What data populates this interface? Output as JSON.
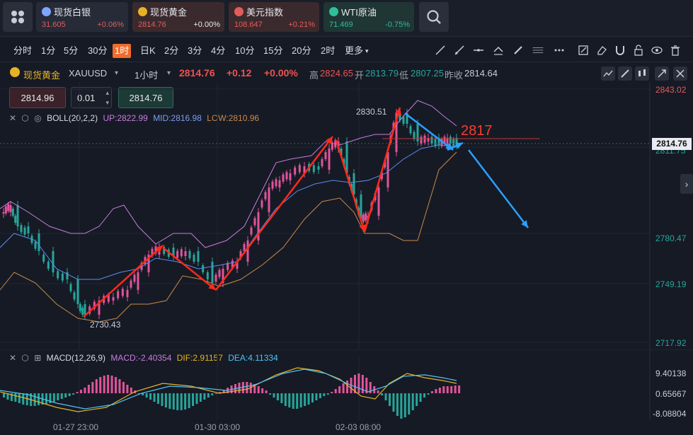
{
  "tickers": [
    {
      "name": "现货白银",
      "price": "31.605",
      "change": "+0.06%",
      "icon_color": "#7da6ff",
      "bg": "#262b37",
      "price_color": "#e45b5b",
      "change_color": "#e45b5b"
    },
    {
      "name": "现货黄金",
      "price": "2814.76",
      "change": "+0.00%",
      "icon_color": "#e6b325",
      "bg": "#3b2a2d",
      "price_color": "#e45b5b",
      "change_color": "#e6e8ee"
    },
    {
      "name": "美元指数",
      "price": "108.647",
      "change": "+0.21%",
      "icon_color": "#e45b5b",
      "bg": "#3b2a2d",
      "price_color": "#e45b5b",
      "change_color": "#e45b5b"
    },
    {
      "name": "WTI原油",
      "price": "71.469",
      "change": "-0.75%",
      "icon_color": "#2fbf9a",
      "bg": "#1f3634",
      "price_color": "#2fbf9a",
      "change_color": "#2fbf9a"
    }
  ],
  "timeframes": [
    "分时",
    "1分",
    "5分",
    "30分",
    "1时",
    "日K",
    "2分",
    "3分",
    "4分",
    "10分",
    "15分",
    "20分",
    "2时",
    "更多"
  ],
  "active_timeframe": "1时",
  "info": {
    "symbol_cn": "现货黄金",
    "symbol": "XAUUSD",
    "period": "1小时",
    "price": "2814.76",
    "change": "+0.12",
    "change_pct": "+0.00%",
    "high_label": "高",
    "high": "2824.65",
    "open_label": "开",
    "open": "2813.79",
    "low_label": "低",
    "low": "2807.25",
    "prev_label": "昨收",
    "prev": "2814.64"
  },
  "order": {
    "sell": "2814.96",
    "lot": "0.01",
    "buy": "2814.76"
  },
  "boll": {
    "label": "BOLL(20,2,2)",
    "up": "UP:2822.99",
    "mid": "MID:2816.98",
    "low": "LOW:2810.96"
  },
  "macd": {
    "label": "MACD(12,26,9)",
    "macd": "MACD:-2.40354",
    "dif": "DIF:2.91157",
    "dea": "DEA:4.11334"
  },
  "y_axis": [
    "2843.02",
    "2811.75",
    "2780.47",
    "2749.19",
    "2717.92"
  ],
  "current_price_tag": "2814.76",
  "macd_axis": [
    "9.40138",
    "0.65667",
    "-8.08804"
  ],
  "x_axis": [
    "01-27 23:00",
    "01-30 03:00",
    "02-03 08:00"
  ],
  "annotations": {
    "high_label": "2830.51",
    "low_label": "2730.43",
    "level": "2817"
  },
  "colors": {
    "up": "#e0549a",
    "down": "#26a69a",
    "accent": "#f26b2b",
    "boll_up": "#c77ddb",
    "boll_mid": "#5b8def",
    "boll_low": "#c98a4b",
    "red_arrow": "#ff2a1a",
    "blue_arrow": "#2aa0ff"
  }
}
